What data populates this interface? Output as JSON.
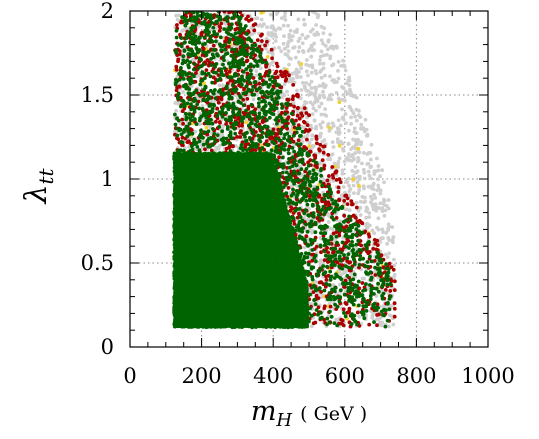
{
  "chart_data": {
    "type": "scatter",
    "title": "",
    "xlabel": "m_H ( GeV )",
    "xlabel_parts": {
      "main": "m",
      "sub": "H",
      "unit": "( GeV )"
    },
    "ylabel": "λ_tt",
    "ylabel_parts": {
      "main": "λ",
      "sub": "tt"
    },
    "xlim": [
      0,
      1000
    ],
    "ylim": [
      0,
      2
    ],
    "x_ticks": [
      0,
      200,
      400,
      600,
      800,
      1000
    ],
    "x_tick_labels": [
      "0",
      "200",
      "400",
      "600",
      "800",
      "1000"
    ],
    "y_ticks": [
      0,
      0.5,
      1,
      1.5,
      2
    ],
    "y_tick_labels": [
      "0",
      "0.5",
      "1",
      "1.5",
      "2"
    ],
    "grid": true,
    "legend": "none",
    "colors": {
      "grey": "#cfcfcf",
      "yellow": "#f2d230",
      "red": "#aa0000",
      "green": "#006400"
    },
    "series": [
      {
        "color": "grey",
        "region": {
          "x_min": 125,
          "x_max": 740,
          "y_min": 0.12,
          "y_max": 2.0
        },
        "upper_edge": [
          [
            125,
            2.0
          ],
          [
            530,
            2.0
          ],
          [
            600,
            1.7
          ],
          [
            700,
            1.1
          ],
          [
            740,
            0.7
          ],
          [
            740,
            0.3
          ]
        ]
      },
      {
        "color": "yellow",
        "region": {
          "x_min": 125,
          "x_max": 740,
          "y_min": 0.12,
          "y_max": 2.0
        },
        "upper_edge": [
          [
            125,
            2.0
          ],
          [
            450,
            2.0
          ],
          [
            560,
            1.6
          ],
          [
            700,
            0.9
          ],
          [
            740,
            0.5
          ]
        ]
      },
      {
        "color": "red",
        "region": {
          "x_min": 125,
          "x_max": 740,
          "y_min": 0.12,
          "y_max": 2.0
        },
        "upper_edge": [
          [
            125,
            2.0
          ],
          [
            330,
            2.0
          ],
          [
            450,
            1.6
          ],
          [
            600,
            0.95
          ],
          [
            700,
            0.6
          ],
          [
            740,
            0.45
          ]
        ]
      },
      {
        "color": "green",
        "region": {
          "x_min": 125,
          "x_max": 730,
          "y_min": 0.12,
          "y_max": 2.0
        },
        "upper_edge": [
          [
            125,
            2.0
          ],
          [
            300,
            2.0
          ],
          [
            420,
            1.55
          ],
          [
            560,
            0.95
          ],
          [
            680,
            0.6
          ],
          [
            730,
            0.45
          ]
        ],
        "dense_core": {
          "x_min": 125,
          "x_max": 500,
          "y_min": 0.12,
          "y_max": 1.15
        }
      }
    ]
  }
}
